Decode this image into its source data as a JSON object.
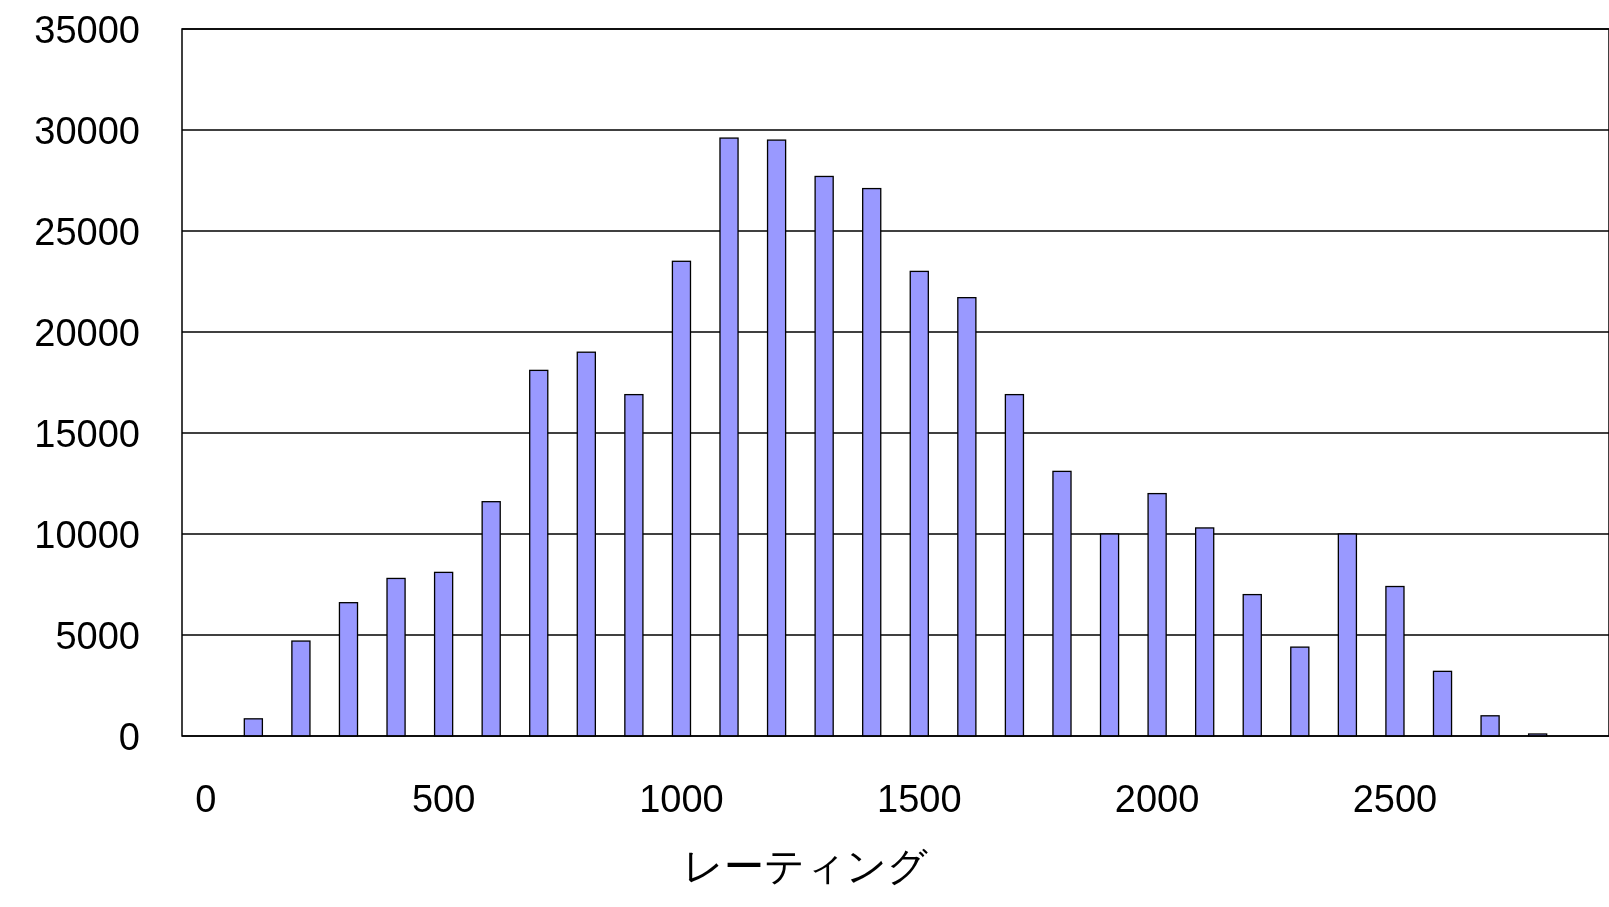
{
  "chart_data": {
    "type": "bar",
    "xlabel": "レーティング",
    "x": [
      100,
      200,
      300,
      400,
      500,
      600,
      700,
      800,
      900,
      1000,
      1100,
      1200,
      1300,
      1400,
      1500,
      1600,
      1700,
      1800,
      1900,
      2000,
      2100,
      2200,
      2300,
      2400,
      2500,
      2600,
      2700,
      2800
    ],
    "values": [
      850,
      4700,
      6600,
      7800,
      8100,
      11600,
      18100,
      19000,
      16900,
      23500,
      29600,
      29500,
      27700,
      27100,
      23000,
      21700,
      16900,
      13100,
      10000,
      12000,
      10300,
      7000,
      4400,
      10000,
      7400,
      3200,
      1000,
      100
    ],
    "color": "#9999ff",
    "xlim": [
      -50,
      2950
    ],
    "xticks": [
      0,
      500,
      1000,
      1500,
      2000,
      2500
    ],
    "ylim": [
      0,
      35000
    ],
    "yticks": [
      0,
      5000,
      10000,
      15000,
      20000,
      25000,
      30000,
      35000
    ],
    "grid": "y"
  }
}
